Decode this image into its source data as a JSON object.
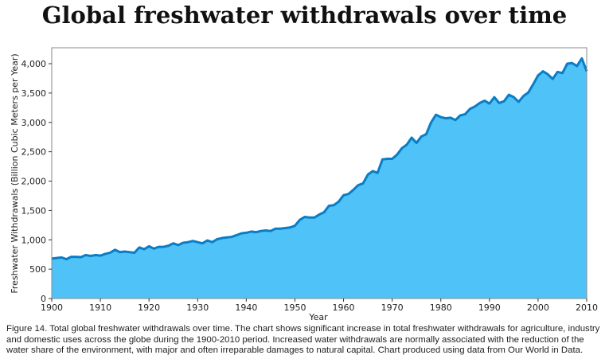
{
  "chart_data": {
    "type": "area",
    "title": "Global freshwater withdrawals over time",
    "xlabel": "Year",
    "ylabel": "Freshwater Withdrawals (Billion Cubic Meters per Year)",
    "xlim": [
      1900,
      2010
    ],
    "ylim": [
      0,
      4200
    ],
    "xticks": [
      1900,
      1910,
      1920,
      1930,
      1940,
      1950,
      1960,
      1970,
      1980,
      1990,
      2000,
      2010
    ],
    "yticks": [
      0,
      500,
      1000,
      1500,
      2000,
      2500,
      3000,
      3500,
      4000
    ],
    "ytick_labels": [
      "0",
      "500",
      "1,000",
      "1,500",
      "2,000",
      "2,500",
      "3,000",
      "3,500",
      "4,000"
    ],
    "grid": false,
    "colors": {
      "fill": "#4FC3F7",
      "line": "#0B7DC5"
    },
    "x_start": 1900,
    "values": [
      680,
      690,
      700,
      670,
      710,
      710,
      705,
      740,
      725,
      740,
      730,
      760,
      780,
      830,
      790,
      800,
      790,
      780,
      870,
      840,
      890,
      850,
      880,
      880,
      900,
      940,
      910,
      950,
      960,
      980,
      960,
      940,
      990,
      960,
      1010,
      1030,
      1040,
      1050,
      1080,
      1110,
      1120,
      1140,
      1130,
      1150,
      1160,
      1150,
      1190,
      1190,
      1200,
      1210,
      1240,
      1340,
      1390,
      1380,
      1380,
      1430,
      1470,
      1580,
      1590,
      1650,
      1760,
      1780,
      1850,
      1930,
      1960,
      2110,
      2170,
      2140,
      2370,
      2380,
      2380,
      2450,
      2560,
      2620,
      2740,
      2650,
      2760,
      2800,
      3000,
      3130,
      3090,
      3070,
      3080,
      3040,
      3120,
      3140,
      3230,
      3270,
      3330,
      3370,
      3320,
      3430,
      3330,
      3360,
      3470,
      3430,
      3350,
      3450,
      3510,
      3650,
      3800,
      3870,
      3820,
      3740,
      3860,
      3840,
      4000,
      4010,
      3960,
      4090,
      3870
    ]
  },
  "caption": {
    "label": "Figure 14.",
    "text": " Total global freshwater withdrawals over time. The chart shows significant increase in total freshwater withdrawals for agriculture, industry and domestic uses across the globe during the 1900-2010 period. Increased water withdrawals are normally associated with the reduction of the water share of the environment, with major and often irreparable damages to natural capital. Chart produced using data from Our World in Data."
  }
}
